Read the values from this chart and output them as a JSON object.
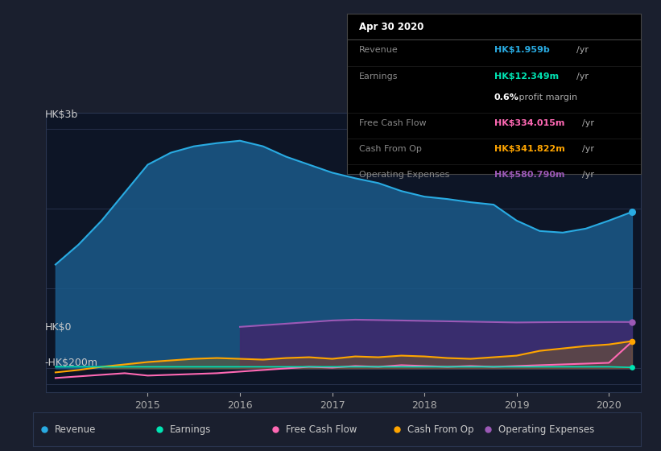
{
  "bg_color": "#1a1f2e",
  "plot_bg_color": "#0d1526",
  "ylabel_top": "HK$3b",
  "ylabel_zero": "HK$0",
  "ylabel_neg": "-HK$200m",
  "x_labels": [
    "2015",
    "2016",
    "2017",
    "2018",
    "2019",
    "2020"
  ],
  "years": [
    2014.0,
    2014.25,
    2014.5,
    2014.75,
    2015.0,
    2015.25,
    2015.5,
    2015.75,
    2016.0,
    2016.25,
    2016.5,
    2016.75,
    2017.0,
    2017.25,
    2017.5,
    2017.75,
    2018.0,
    2018.25,
    2018.5,
    2018.75,
    2019.0,
    2019.25,
    2019.5,
    2019.75,
    2020.0,
    2020.25
  ],
  "revenue": [
    1.3,
    1.55,
    1.85,
    2.2,
    2.55,
    2.7,
    2.78,
    2.82,
    2.85,
    2.78,
    2.65,
    2.55,
    2.45,
    2.38,
    2.32,
    2.22,
    2.15,
    2.12,
    2.08,
    2.05,
    1.85,
    1.72,
    1.7,
    1.75,
    1.85,
    1.959
  ],
  "operating_expenses": [
    0.0,
    0.0,
    0.0,
    0.0,
    0.0,
    0.0,
    0.0,
    0.0,
    0.52,
    0.54,
    0.56,
    0.58,
    0.6,
    0.61,
    0.605,
    0.6,
    0.595,
    0.59,
    0.585,
    0.58,
    0.575,
    0.578,
    0.58,
    0.581,
    0.582,
    0.5808
  ],
  "cash_from_op": [
    -0.05,
    -0.02,
    0.02,
    0.05,
    0.08,
    0.1,
    0.12,
    0.13,
    0.12,
    0.11,
    0.13,
    0.14,
    0.12,
    0.15,
    0.14,
    0.16,
    0.15,
    0.13,
    0.12,
    0.14,
    0.16,
    0.22,
    0.25,
    0.28,
    0.3,
    0.3418
  ],
  "free_cash_flow": [
    -0.12,
    -0.1,
    -0.08,
    -0.06,
    -0.09,
    -0.08,
    -0.07,
    -0.06,
    -0.04,
    -0.02,
    0.0,
    0.02,
    0.01,
    0.03,
    0.02,
    0.04,
    0.03,
    0.02,
    0.03,
    0.02,
    0.03,
    0.04,
    0.05,
    0.06,
    0.07,
    0.334
  ],
  "earnings": [
    0.02,
    0.02,
    0.02,
    0.02,
    0.02,
    0.02,
    0.02,
    0.02,
    0.02,
    0.02,
    0.02,
    0.02,
    0.02,
    0.02,
    0.02,
    0.02,
    0.02,
    0.02,
    0.02,
    0.02,
    0.02,
    0.02,
    0.02,
    0.02,
    0.02,
    0.01235
  ],
  "revenue_color": "#29abe2",
  "earnings_color": "#00e5b4",
  "free_cash_flow_color": "#ff69b4",
  "cash_from_op_color": "#ffa500",
  "operating_expenses_color": "#9b59b6",
  "revenue_fill": "#1a5a8a",
  "operating_expenses_fill": "#3d2b6e",
  "info_box": {
    "title": "Apr 30 2020",
    "revenue_label": "Revenue",
    "revenue_value": "HK$1.959b",
    "revenue_color": "#29abe2",
    "earnings_label": "Earnings",
    "earnings_value": "HK$12.349m",
    "earnings_color": "#00e5b4",
    "profit_margin": "0.6%",
    "fcf_label": "Free Cash Flow",
    "fcf_value": "HK$334.015m",
    "fcf_color": "#ff69b4",
    "cfo_label": "Cash From Op",
    "cfo_value": "HK$341.822m",
    "cfo_color": "#ffa500",
    "opex_label": "Operating Expenses",
    "opex_value": "HK$580.790m",
    "opex_color": "#9b59b6"
  },
  "legend": [
    {
      "label": "Revenue",
      "color": "#29abe2"
    },
    {
      "label": "Earnings",
      "color": "#00e5b4"
    },
    {
      "label": "Free Cash Flow",
      "color": "#ff69b4"
    },
    {
      "label": "Cash From Op",
      "color": "#ffa500"
    },
    {
      "label": "Operating Expenses",
      "color": "#9b59b6"
    }
  ]
}
